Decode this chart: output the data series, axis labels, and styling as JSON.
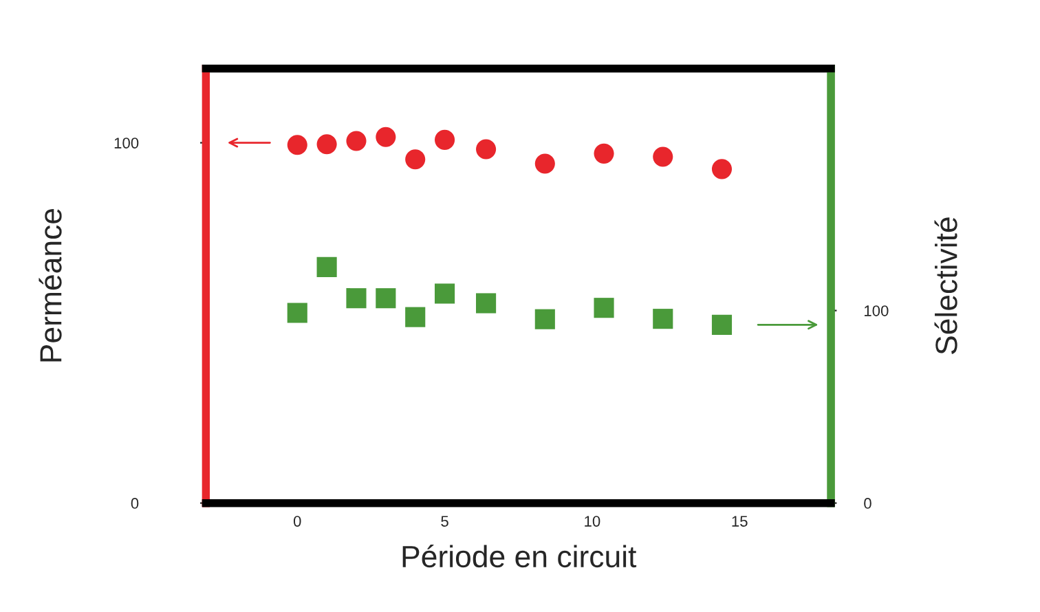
{
  "chart_data": {
    "type": "scatter",
    "xlabel": "Période en circuit",
    "ylabel": "Perméance",
    "y2label": "Sélectivité",
    "x": [
      0,
      1,
      2,
      3,
      4,
      5,
      6.4,
      8.4,
      10.4,
      12.4,
      14.4
    ],
    "series": [
      {
        "color": "#e8262c",
        "marker": "circle",
        "values": [
          99.4,
          99.6,
          100.5,
          101.6,
          95.4,
          100.8,
          98.2,
          94.2,
          97.0,
          96.1,
          92.7
        ]
      },
      {
        "color": "#4a9a3a",
        "marker": "square",
        "axis": "y2",
        "values": [
          98.8,
          122.6,
          106.4,
          106.4,
          96.6,
          108.8,
          103.8,
          95.5,
          101.4,
          95.7,
          92.6
        ]
      }
    ],
    "xlim": [
      -3.1,
      18.1
    ],
    "xticks": [
      0,
      5,
      10,
      15
    ],
    "ylim": [
      0,
      120.6
    ],
    "yticks": [
      0,
      100
    ],
    "y2lim": [
      0,
      225.7
    ],
    "y2ticks": [
      0,
      100
    ],
    "grid": false,
    "legend": false
  }
}
